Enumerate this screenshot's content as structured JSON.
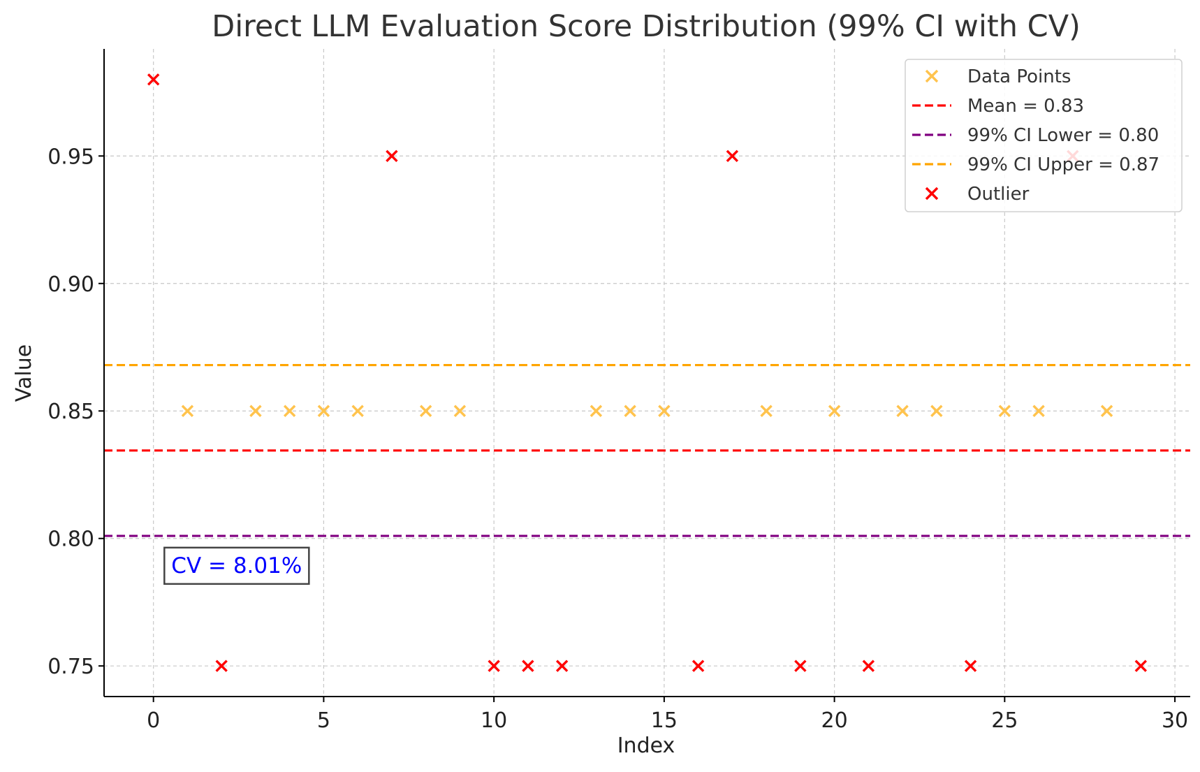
{
  "chart_data": {
    "type": "scatter",
    "title": "Direct LLM Evaluation Score Distribution (99% CI with CV)",
    "xlabel": "Index",
    "ylabel": "Value",
    "xlim": [
      -1.45,
      30.45
    ],
    "ylim": [
      0.738,
      0.992
    ],
    "xticks": [
      0,
      5,
      10,
      15,
      20,
      25,
      30
    ],
    "xtick_labels": [
      "0",
      "5",
      "10",
      "15",
      "20",
      "25",
      "30"
    ],
    "yticks": [
      0.75,
      0.8,
      0.85,
      0.9,
      0.95
    ],
    "ytick_labels": [
      "0.75",
      "0.80",
      "0.85",
      "0.90",
      "0.95"
    ],
    "grid": true,
    "legend_position": "top-right",
    "series": [
      {
        "name": "Data Points",
        "marker": "x",
        "color": "#ffc34d",
        "points": [
          {
            "x": 1,
            "y": 0.85
          },
          {
            "x": 3,
            "y": 0.85
          },
          {
            "x": 4,
            "y": 0.85
          },
          {
            "x": 5,
            "y": 0.85
          },
          {
            "x": 6,
            "y": 0.85
          },
          {
            "x": 8,
            "y": 0.85
          },
          {
            "x": 9,
            "y": 0.85
          },
          {
            "x": 13,
            "y": 0.85
          },
          {
            "x": 14,
            "y": 0.85
          },
          {
            "x": 15,
            "y": 0.85
          },
          {
            "x": 18,
            "y": 0.85
          },
          {
            "x": 20,
            "y": 0.85
          },
          {
            "x": 22,
            "y": 0.85
          },
          {
            "x": 23,
            "y": 0.85
          },
          {
            "x": 25,
            "y": 0.85
          },
          {
            "x": 26,
            "y": 0.85
          },
          {
            "x": 28,
            "y": 0.85
          }
        ]
      },
      {
        "name": "Outlier",
        "marker": "x",
        "color": "#ff0000",
        "points": [
          {
            "x": 0,
            "y": 0.98
          },
          {
            "x": 2,
            "y": 0.75
          },
          {
            "x": 7,
            "y": 0.95
          },
          {
            "x": 10,
            "y": 0.75
          },
          {
            "x": 11,
            "y": 0.75
          },
          {
            "x": 12,
            "y": 0.75
          },
          {
            "x": 16,
            "y": 0.75
          },
          {
            "x": 17,
            "y": 0.95
          },
          {
            "x": 19,
            "y": 0.75
          },
          {
            "x": 21,
            "y": 0.75
          },
          {
            "x": 24,
            "y": 0.75
          },
          {
            "x": 27,
            "y": 0.95
          },
          {
            "x": 29,
            "y": 0.75
          }
        ]
      }
    ],
    "hlines": [
      {
        "name": "Mean = 0.83",
        "y": 0.8345,
        "color": "#ff0000",
        "dash": true
      },
      {
        "name": "99% CI Lower = 0.80",
        "y": 0.801,
        "color": "#800080",
        "dash": true
      },
      {
        "name": "99% CI Upper = 0.87",
        "y": 0.868,
        "color": "#ffa500",
        "dash": true
      }
    ],
    "legend": [
      {
        "label": "Data Points",
        "kind": "marker",
        "color": "#ffc34d"
      },
      {
        "label": "Mean = 0.83",
        "kind": "line",
        "color": "#ff0000"
      },
      {
        "label": "99% CI Lower = 0.80",
        "kind": "line",
        "color": "#800080"
      },
      {
        "label": "99% CI Upper = 0.87",
        "kind": "line",
        "color": "#ffa500"
      },
      {
        "label": "Outlier",
        "kind": "marker",
        "color": "#ff0000"
      }
    ],
    "annotation": {
      "text": "CV = 8.01%",
      "anchor": {
        "x": 0.3,
        "y": 0.786
      },
      "color": "#0000ff"
    }
  }
}
